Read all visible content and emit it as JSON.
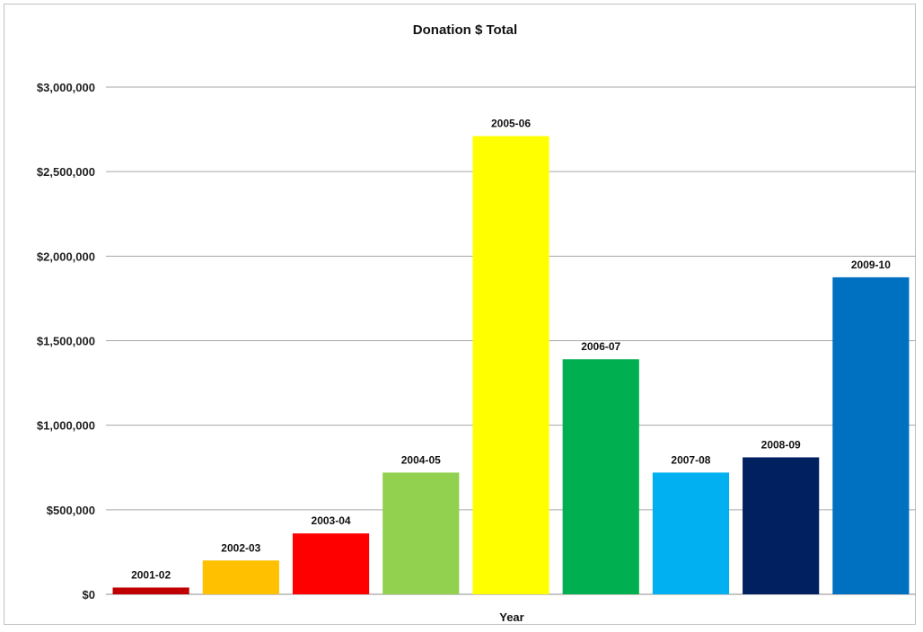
{
  "chart_data": {
    "type": "bar",
    "title": "Donation $ Total",
    "xlabel": "Year",
    "ylabel": "",
    "categories": [
      "2001-02",
      "2002-03",
      "2003-04",
      "2004-05",
      "2005-06",
      "2006-07",
      "2007-08",
      "2008-09",
      "2009-10"
    ],
    "values": [
      40000,
      200000,
      360000,
      720000,
      2710000,
      1390000,
      720000,
      810000,
      1875000
    ],
    "data_labels": [
      "2001-02",
      "2002-03",
      "2003-04",
      "2004-05",
      "2005-06",
      "2006-07",
      "2007-08",
      "2008-09",
      "2009-10"
    ],
    "colors": [
      "#C00000",
      "#FFC000",
      "#FF0000",
      "#92D050",
      "#FFFF00",
      "#00B050",
      "#00B0F0",
      "#002060",
      "#0070C0"
    ],
    "ylim": [
      0,
      3000000
    ],
    "y_ticks": [
      0,
      500000,
      1000000,
      1500000,
      2000000,
      2500000,
      3000000
    ],
    "y_tick_labels": [
      "$0",
      "$500,000",
      "$1,000,000",
      "$1,500,000",
      "$2,000,000",
      "$2,500,000",
      "$3,000,000"
    ],
    "grid": true,
    "legend": "none"
  }
}
